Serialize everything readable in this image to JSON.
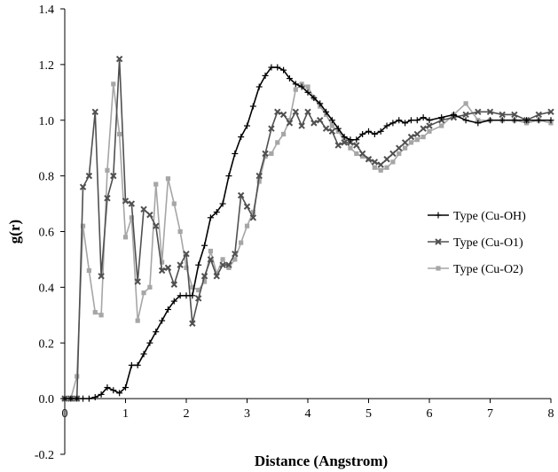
{
  "chart_data": {
    "type": "line",
    "title": "",
    "xlabel": "Distance (Angstrom)",
    "ylabel": "g(r)",
    "xlim": [
      0,
      8
    ],
    "ylim": [
      -0.2,
      1.4
    ],
    "xticks": [
      0,
      1,
      2,
      3,
      4,
      5,
      6,
      7,
      8
    ],
    "yticks": [
      -0.2,
      0.0,
      0.2,
      0.4,
      0.6,
      0.8,
      1.0,
      1.2,
      1.4
    ],
    "ytick_labels": [
      "-0.2",
      "0.0",
      "0.2",
      "0.4",
      "0.6",
      "0.8",
      "1.0",
      "1.2",
      "1.4"
    ],
    "grid": false,
    "legend_position": "right",
    "series": [
      {
        "name": "Type (Cu-OH)",
        "color": "#000000",
        "marker": "plus",
        "points": [
          [
            0.0,
            0.0
          ],
          [
            0.1,
            0.0
          ],
          [
            0.2,
            0.0
          ],
          [
            0.3,
            0.0
          ],
          [
            0.4,
            0.0
          ],
          [
            0.5,
            0.005
          ],
          [
            0.6,
            0.015
          ],
          [
            0.7,
            0.04
          ],
          [
            0.8,
            0.03
          ],
          [
            0.9,
            0.02
          ],
          [
            1.0,
            0.04
          ],
          [
            1.1,
            0.12
          ],
          [
            1.2,
            0.12
          ],
          [
            1.3,
            0.16
          ],
          [
            1.4,
            0.2
          ],
          [
            1.5,
            0.24
          ],
          [
            1.6,
            0.28
          ],
          [
            1.7,
            0.32
          ],
          [
            1.8,
            0.35
          ],
          [
            1.9,
            0.37
          ],
          [
            2.0,
            0.37
          ],
          [
            2.1,
            0.37
          ],
          [
            2.2,
            0.48
          ],
          [
            2.3,
            0.55
          ],
          [
            2.4,
            0.65
          ],
          [
            2.5,
            0.67
          ],
          [
            2.6,
            0.7
          ],
          [
            2.7,
            0.8
          ],
          [
            2.8,
            0.88
          ],
          [
            2.9,
            0.94
          ],
          [
            3.0,
            0.98
          ],
          [
            3.1,
            1.05
          ],
          [
            3.2,
            1.12
          ],
          [
            3.3,
            1.16
          ],
          [
            3.4,
            1.19
          ],
          [
            3.5,
            1.19
          ],
          [
            3.6,
            1.18
          ],
          [
            3.7,
            1.15
          ],
          [
            3.8,
            1.13
          ],
          [
            3.9,
            1.12
          ],
          [
            4.0,
            1.1
          ],
          [
            4.1,
            1.08
          ],
          [
            4.2,
            1.06
          ],
          [
            4.3,
            1.03
          ],
          [
            4.4,
            1.0
          ],
          [
            4.5,
            0.97
          ],
          [
            4.6,
            0.94
          ],
          [
            4.7,
            0.93
          ],
          [
            4.8,
            0.93
          ],
          [
            4.9,
            0.95
          ],
          [
            5.0,
            0.96
          ],
          [
            5.1,
            0.95
          ],
          [
            5.2,
            0.96
          ],
          [
            5.3,
            0.98
          ],
          [
            5.4,
            0.99
          ],
          [
            5.5,
            1.0
          ],
          [
            5.6,
            0.99
          ],
          [
            5.7,
            1.0
          ],
          [
            5.8,
            1.0
          ],
          [
            5.9,
            1.01
          ],
          [
            6.0,
            1.0
          ],
          [
            6.2,
            1.01
          ],
          [
            6.4,
            1.02
          ],
          [
            6.6,
            1.0
          ],
          [
            6.8,
            0.99
          ],
          [
            7.0,
            1.0
          ],
          [
            7.2,
            1.0
          ],
          [
            7.4,
            1.0
          ],
          [
            7.6,
            1.0
          ],
          [
            7.8,
            1.0
          ],
          [
            8.0,
            1.0
          ]
        ]
      },
      {
        "name": "Type (Cu-O1)",
        "color": "#505050",
        "marker": "x",
        "points": [
          [
            0.0,
            0.0
          ],
          [
            0.1,
            0.0
          ],
          [
            0.2,
            0.0
          ],
          [
            0.3,
            0.76
          ],
          [
            0.4,
            0.8
          ],
          [
            0.5,
            1.03
          ],
          [
            0.6,
            0.44
          ],
          [
            0.7,
            0.72
          ],
          [
            0.8,
            0.8
          ],
          [
            0.9,
            1.22
          ],
          [
            1.0,
            0.71
          ],
          [
            1.1,
            0.7
          ],
          [
            1.2,
            0.42
          ],
          [
            1.3,
            0.68
          ],
          [
            1.4,
            0.66
          ],
          [
            1.5,
            0.62
          ],
          [
            1.6,
            0.46
          ],
          [
            1.7,
            0.47
          ],
          [
            1.8,
            0.41
          ],
          [
            1.9,
            0.48
          ],
          [
            2.0,
            0.52
          ],
          [
            2.1,
            0.27
          ],
          [
            2.2,
            0.36
          ],
          [
            2.3,
            0.44
          ],
          [
            2.4,
            0.5
          ],
          [
            2.5,
            0.44
          ],
          [
            2.6,
            0.48
          ],
          [
            2.7,
            0.48
          ],
          [
            2.8,
            0.52
          ],
          [
            2.9,
            0.73
          ],
          [
            3.0,
            0.69
          ],
          [
            3.1,
            0.65
          ],
          [
            3.2,
            0.8
          ],
          [
            3.3,
            0.88
          ],
          [
            3.4,
            0.97
          ],
          [
            3.5,
            1.03
          ],
          [
            3.6,
            1.02
          ],
          [
            3.7,
            0.99
          ],
          [
            3.8,
            1.03
          ],
          [
            3.9,
            0.98
          ],
          [
            4.0,
            1.03
          ],
          [
            4.1,
            0.99
          ],
          [
            4.2,
            1.0
          ],
          [
            4.3,
            0.97
          ],
          [
            4.4,
            0.96
          ],
          [
            4.5,
            0.91
          ],
          [
            4.6,
            0.92
          ],
          [
            4.7,
            0.92
          ],
          [
            4.8,
            0.91
          ],
          [
            4.9,
            0.88
          ],
          [
            5.0,
            0.86
          ],
          [
            5.1,
            0.85
          ],
          [
            5.2,
            0.84
          ],
          [
            5.3,
            0.86
          ],
          [
            5.4,
            0.88
          ],
          [
            5.5,
            0.9
          ],
          [
            5.6,
            0.92
          ],
          [
            5.7,
            0.94
          ],
          [
            5.8,
            0.95
          ],
          [
            5.9,
            0.97
          ],
          [
            6.0,
            0.98
          ],
          [
            6.2,
            1.0
          ],
          [
            6.4,
            1.01
          ],
          [
            6.6,
            1.02
          ],
          [
            6.8,
            1.03
          ],
          [
            7.0,
            1.03
          ],
          [
            7.2,
            1.02
          ],
          [
            7.4,
            1.02
          ],
          [
            7.6,
            1.0
          ],
          [
            7.8,
            1.02
          ],
          [
            8.0,
            1.03
          ]
        ]
      },
      {
        "name": "Type (Cu-O2)",
        "color": "#a6a6a6",
        "marker": "square",
        "points": [
          [
            0.0,
            0.0
          ],
          [
            0.1,
            0.0
          ],
          [
            0.2,
            0.08
          ],
          [
            0.3,
            0.62
          ],
          [
            0.4,
            0.46
          ],
          [
            0.5,
            0.31
          ],
          [
            0.6,
            0.3
          ],
          [
            0.7,
            0.82
          ],
          [
            0.8,
            1.13
          ],
          [
            0.9,
            0.95
          ],
          [
            1.0,
            0.58
          ],
          [
            1.1,
            0.65
          ],
          [
            1.2,
            0.28
          ],
          [
            1.3,
            0.38
          ],
          [
            1.4,
            0.4
          ],
          [
            1.5,
            0.77
          ],
          [
            1.6,
            0.49
          ],
          [
            1.7,
            0.79
          ],
          [
            1.8,
            0.7
          ],
          [
            1.9,
            0.6
          ],
          [
            2.0,
            0.47
          ],
          [
            2.1,
            0.4
          ],
          [
            2.2,
            0.39
          ],
          [
            2.3,
            0.42
          ],
          [
            2.4,
            0.53
          ],
          [
            2.5,
            0.45
          ],
          [
            2.6,
            0.5
          ],
          [
            2.7,
            0.47
          ],
          [
            2.8,
            0.5
          ],
          [
            2.9,
            0.56
          ],
          [
            3.0,
            0.62
          ],
          [
            3.1,
            0.67
          ],
          [
            3.2,
            0.78
          ],
          [
            3.3,
            0.87
          ],
          [
            3.4,
            0.88
          ],
          [
            3.5,
            0.92
          ],
          [
            3.6,
            0.95
          ],
          [
            3.7,
            1.0
          ],
          [
            3.8,
            1.11
          ],
          [
            3.9,
            1.13
          ],
          [
            4.0,
            1.12
          ],
          [
            4.1,
            1.08
          ],
          [
            4.2,
            1.05
          ],
          [
            4.3,
            1.02
          ],
          [
            4.4,
            0.98
          ],
          [
            4.5,
            0.96
          ],
          [
            4.6,
            0.93
          ],
          [
            4.7,
            0.9
          ],
          [
            4.8,
            0.88
          ],
          [
            4.9,
            0.87
          ],
          [
            5.0,
            0.86
          ],
          [
            5.1,
            0.83
          ],
          [
            5.2,
            0.82
          ],
          [
            5.3,
            0.83
          ],
          [
            5.4,
            0.85
          ],
          [
            5.5,
            0.88
          ],
          [
            5.6,
            0.9
          ],
          [
            5.7,
            0.92
          ],
          [
            5.8,
            0.93
          ],
          [
            5.9,
            0.94
          ],
          [
            6.0,
            0.96
          ],
          [
            6.2,
            0.98
          ],
          [
            6.4,
            1.02
          ],
          [
            6.6,
            1.06
          ],
          [
            6.8,
            1.0
          ],
          [
            7.0,
            1.0
          ],
          [
            7.2,
            1.0
          ],
          [
            7.4,
            1.0
          ],
          [
            7.6,
            0.99
          ],
          [
            7.8,
            1.0
          ],
          [
            8.0,
            0.99
          ]
        ]
      }
    ]
  }
}
